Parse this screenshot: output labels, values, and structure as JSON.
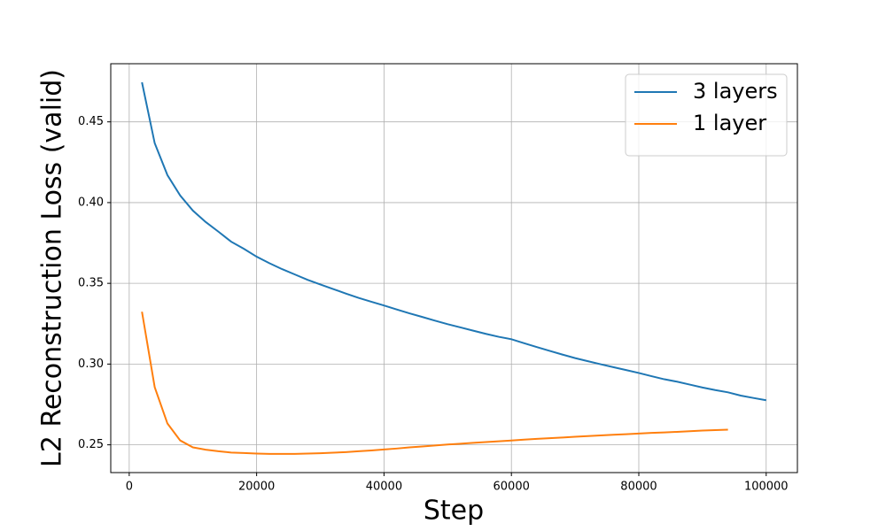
{
  "chart_data": {
    "type": "line",
    "x_label": "Step",
    "y_label": "L2 Reconstruction Loss (valid)",
    "x": [
      2000,
      4000,
      6000,
      8000,
      10000,
      12000,
      14000,
      16000,
      18000,
      20000,
      22000,
      24000,
      26000,
      28000,
      30000,
      32000,
      34000,
      36000,
      38000,
      40000,
      42000,
      44000,
      46000,
      48000,
      50000,
      52000,
      54000,
      56000,
      58000,
      60000,
      62000,
      64000,
      66000,
      68000,
      70000,
      72000,
      74000,
      76000,
      78000,
      80000,
      82000,
      84000,
      86000,
      88000,
      90000,
      92000,
      94000,
      96000,
      98000,
      100000
    ],
    "series": [
      {
        "name": "3 layers",
        "color": "#1f77b4",
        "values": [
          0.4745,
          0.4368,
          0.417,
          0.4044,
          0.395,
          0.388,
          0.382,
          0.3758,
          0.3714,
          0.3665,
          0.3625,
          0.3588,
          0.3555,
          0.3522,
          0.3493,
          0.3465,
          0.3437,
          0.341,
          0.3386,
          0.3363,
          0.3338,
          0.3314,
          0.3292,
          0.3269,
          0.3247,
          0.3227,
          0.3207,
          0.3187,
          0.3169,
          0.3154,
          0.3129,
          0.3105,
          0.3082,
          0.3059,
          0.3037,
          0.3018,
          0.2999,
          0.2981,
          0.2963,
          0.2945,
          0.2925,
          0.2906,
          0.2891,
          0.2873,
          0.2855,
          0.2839,
          0.2825,
          0.2805,
          0.279,
          0.2776
        ]
      },
      {
        "name": "1 layer",
        "color": "#ff7f0e",
        "values": [
          0.3324,
          0.2857,
          0.2632,
          0.2527,
          0.2484,
          0.247,
          0.246,
          0.2452,
          0.2449,
          0.2446,
          0.2444,
          0.2444,
          0.2444,
          0.2446,
          0.2448,
          0.2451,
          0.2455,
          0.246,
          0.2465,
          0.2471,
          0.2477,
          0.2484,
          0.249,
          0.2496,
          0.2502,
          0.2507,
          0.2512,
          0.2517,
          0.2522,
          0.2527,
          0.2532,
          0.2537,
          0.2541,
          0.2545,
          0.255,
          0.2554,
          0.2558,
          0.2562,
          0.2566,
          0.257,
          0.2574,
          0.2577,
          0.258,
          0.2584,
          0.2588,
          0.2591,
          0.2594,
          null,
          null,
          null
        ]
      }
    ],
    "xlim": [
      -2900,
      104900
    ],
    "xticks": [
      0,
      20000,
      40000,
      60000,
      80000,
      100000
    ],
    "ylim": [
      0.2328,
      0.486
    ],
    "yticks": [
      0.25,
      {
        "value": 0.3,
        "label": "0.30"
      },
      0.35,
      {
        "value": 0.4,
        "label": "0.40"
      },
      0.45
    ],
    "grid": true,
    "legend": "upper right"
  }
}
